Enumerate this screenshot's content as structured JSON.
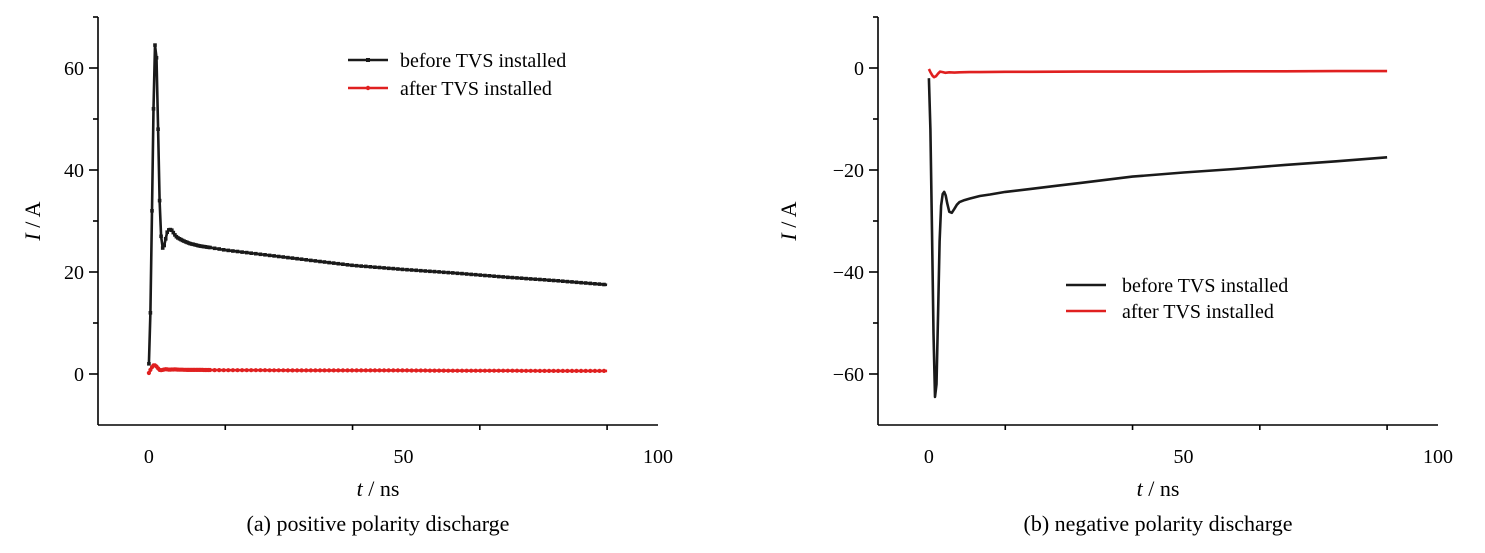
{
  "chart_data": [
    {
      "type": "line",
      "caption": "(a) positive polarity discharge",
      "xlabel_var": "t",
      "xlabel_unit": " / ns",
      "ylabel_var": "I",
      "ylabel_unit": " / A",
      "xlim": [
        -10,
        100
      ],
      "ylim": [
        -10,
        70
      ],
      "xticks": [
        0,
        50,
        100
      ],
      "yticks": [
        0,
        20,
        40,
        60
      ],
      "xtick_labels": [
        "0",
        "50",
        "100"
      ],
      "ytick_labels": [
        "0",
        "20",
        "40",
        "60"
      ],
      "grid": false,
      "legend_position": "top-right",
      "series": [
        {
          "name": "before TVS installed",
          "color": "#1a1a1a",
          "markers": true,
          "x": [
            0,
            0.3,
            0.6,
            0.9,
            1.2,
            1.5,
            1.8,
            2.1,
            2.4,
            2.7,
            3.0,
            3.3,
            3.6,
            4.0,
            4.5,
            5.0,
            5.5,
            6.0,
            7.0,
            8.0,
            10,
            12,
            15,
            20,
            25,
            30,
            40,
            50,
            60,
            70,
            80,
            90
          ],
          "y": [
            2,
            12,
            32,
            52,
            64.5,
            62,
            48,
            34,
            27,
            24.7,
            25.2,
            26.5,
            27.8,
            28.4,
            28.2,
            27.4,
            26.8,
            26.5,
            26.0,
            25.6,
            25.1,
            24.8,
            24.3,
            23.7,
            23.1,
            22.5,
            21.3,
            20.5,
            19.8,
            19.0,
            18.3,
            17.5
          ]
        },
        {
          "name": "after TVS installed",
          "color": "#e02020",
          "markers": true,
          "x": [
            0,
            0.3,
            0.7,
            1.0,
            1.4,
            1.8,
            2.2,
            2.7,
            3.2,
            4.0,
            5.0,
            6.0,
            8.0,
            10,
            15,
            20,
            30,
            40,
            50,
            60,
            70,
            80,
            90
          ],
          "y": [
            0.2,
            0.8,
            1.5,
            1.8,
            1.6,
            1.1,
            0.7,
            0.8,
            0.95,
            0.85,
            0.9,
            0.85,
            0.8,
            0.8,
            0.75,
            0.75,
            0.7,
            0.7,
            0.7,
            0.65,
            0.65,
            0.6,
            0.6
          ]
        }
      ]
    },
    {
      "type": "line",
      "caption": "(b) negative polarity discharge",
      "xlabel_var": "t",
      "xlabel_unit": " / ns",
      "ylabel_var": "I",
      "ylabel_unit": " / A",
      "xlim": [
        -10,
        100
      ],
      "ylim": [
        -70,
        10
      ],
      "xticks": [
        0,
        50,
        100
      ],
      "yticks": [
        -60,
        -40,
        -20,
        0
      ],
      "xtick_labels": [
        "0",
        "50",
        "100"
      ],
      "ytick_labels": [
        "−60",
        "−40",
        "−20",
        "0"
      ],
      "grid": false,
      "legend_position": "bottom-right",
      "series": [
        {
          "name": "before TVS installed",
          "color": "#1a1a1a",
          "markers": false,
          "x": [
            0,
            0.3,
            0.6,
            0.9,
            1.2,
            1.5,
            1.8,
            2.1,
            2.4,
            2.7,
            3.0,
            3.3,
            3.6,
            4.0,
            4.5,
            5.0,
            5.5,
            6.0,
            7.0,
            8.0,
            10,
            12,
            15,
            20,
            25,
            30,
            40,
            50,
            60,
            70,
            80,
            90
          ],
          "y": [
            -2,
            -12,
            -32,
            -52,
            -64.5,
            -62,
            -48,
            -34,
            -27,
            -24.7,
            -24.3,
            -25.0,
            -26.5,
            -28.2,
            -28.4,
            -27.6,
            -26.8,
            -26.3,
            -25.9,
            -25.6,
            -25.1,
            -24.8,
            -24.3,
            -23.7,
            -23.1,
            -22.5,
            -21.3,
            -20.5,
            -19.8,
            -19.0,
            -18.3,
            -17.5
          ]
        },
        {
          "name": "after TVS installed",
          "color": "#e02020",
          "markers": false,
          "x": [
            0,
            0.3,
            0.7,
            1.0,
            1.4,
            1.8,
            2.2,
            2.7,
            3.2,
            4.0,
            5.0,
            6.0,
            8.0,
            10,
            15,
            20,
            30,
            40,
            50,
            60,
            70,
            80,
            90
          ],
          "y": [
            -0.2,
            -0.8,
            -1.5,
            -1.8,
            -1.6,
            -1.1,
            -0.7,
            -0.8,
            -0.95,
            -0.85,
            -0.9,
            -0.85,
            -0.8,
            -0.8,
            -0.75,
            -0.75,
            -0.7,
            -0.7,
            -0.7,
            -0.65,
            -0.65,
            -0.6,
            -0.6
          ]
        }
      ]
    }
  ]
}
